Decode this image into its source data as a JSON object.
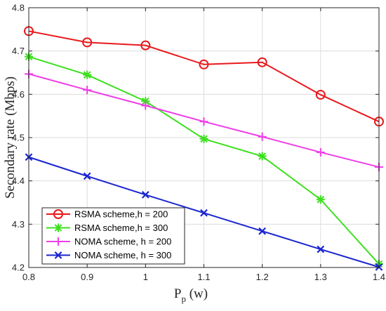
{
  "chart_data": {
    "type": "line",
    "title": "",
    "xlabel": "P",
    "xlabel_sub": "p",
    "xlabel_unit": " (w)",
    "ylabel": "Secondary rate (Mbps)",
    "x": [
      0.8,
      0.9,
      1.0,
      1.1,
      1.2,
      1.3,
      1.4
    ],
    "xlim": [
      0.8,
      1.4
    ],
    "ylim": [
      4.2,
      4.8
    ],
    "xticks": [
      "0.8",
      "0.9",
      "1",
      "1.1",
      "1.2",
      "1.3",
      "1.4"
    ],
    "yticks": [
      "4.2",
      "4.3",
      "4.4",
      "4.5",
      "4.6",
      "4.7",
      "4.8"
    ],
    "grid": true,
    "legend_position": "bottom-left",
    "series": [
      {
        "name": "RSMA scheme,h = 200",
        "color": "#e8191c",
        "marker": "circle",
        "values": [
          4.746,
          4.72,
          4.713,
          4.669,
          4.674,
          4.599,
          4.537
        ]
      },
      {
        "name": "RSMA scheme,h = 300",
        "color": "#3be01d",
        "marker": "asterisk",
        "values": [
          4.687,
          4.645,
          4.584,
          4.497,
          4.457,
          4.357,
          4.208
        ]
      },
      {
        "name": "NOMA scheme, h = 200",
        "color": "#ee3ee8",
        "marker": "plus",
        "values": [
          4.647,
          4.61,
          4.574,
          4.537,
          4.502,
          4.466,
          4.432
        ]
      },
      {
        "name": "NOMA scheme, h = 300",
        "color": "#1a25d0",
        "marker": "cross",
        "values": [
          4.455,
          4.411,
          4.368,
          4.326,
          4.284,
          4.242,
          4.201
        ]
      }
    ]
  }
}
